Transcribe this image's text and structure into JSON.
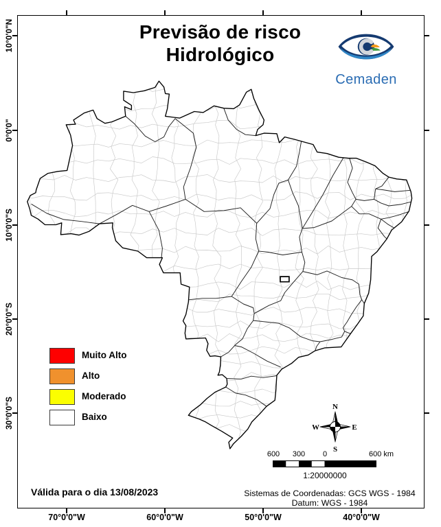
{
  "title": {
    "line1": "Previsão de risco",
    "line2": "Hidrológico"
  },
  "logo": {
    "name": "Cemaden"
  },
  "legend": {
    "items": [
      {
        "label": "Muito Alto",
        "color": "#FE0000"
      },
      {
        "label": "Alto",
        "color": "#F0912D"
      },
      {
        "label": "Moderado",
        "color": "#FBFE00"
      },
      {
        "label": "Baixo",
        "color": "#FFFFFF"
      }
    ]
  },
  "validity": "Válida para o dia 13/08/2023",
  "axes": {
    "left": [
      "10°0'0\"N",
      "0°0'0\"",
      "10°0'0\"S",
      "20°0'0\"S",
      "30°0'0\"S"
    ],
    "bottom": [
      "70°0'0\"W",
      "60°0'0\"W",
      "50°0'0\"W",
      "40°0'0\"W"
    ]
  },
  "compass": {
    "north": "N",
    "south": "S",
    "east": "E",
    "west": "W"
  },
  "scalebar": {
    "ticks": [
      "600",
      "300",
      "0",
      "600 km"
    ],
    "ratio": "1:20000000"
  },
  "coordinate_system": {
    "line1": "Sistemas de Coordenadas: GCS WGS - 1984",
    "line2": "Datum: WGS - 1984"
  }
}
